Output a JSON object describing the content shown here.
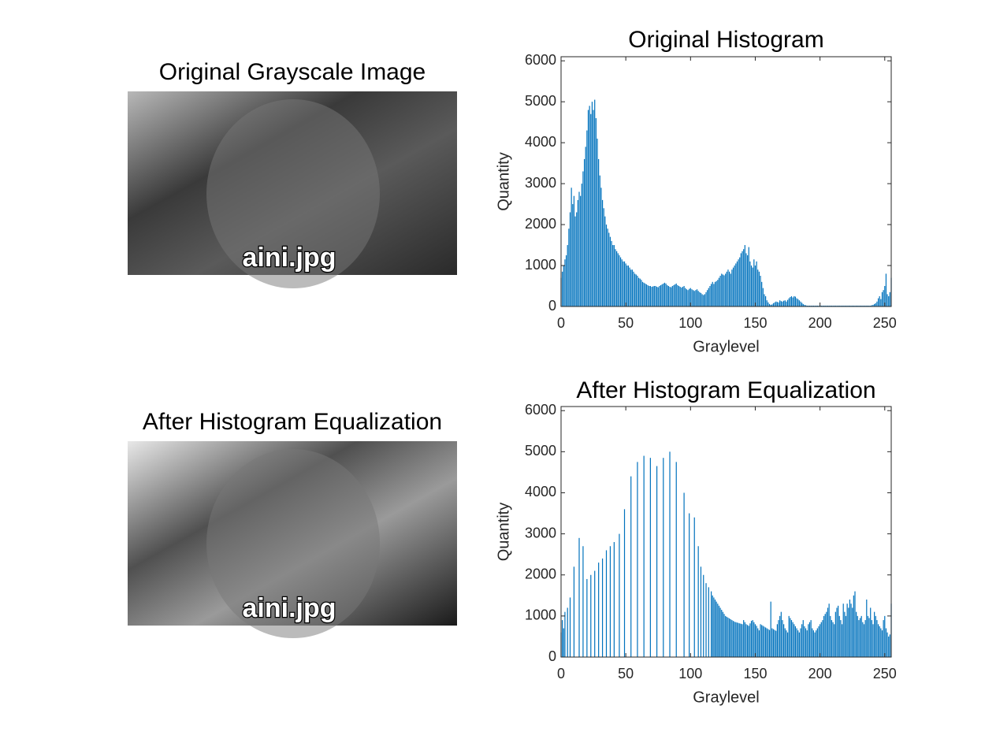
{
  "chart_data": [
    {
      "type": "image",
      "title": "Original Grayscale Image",
      "caption": "aini.jpg"
    },
    {
      "type": "histogram",
      "title": "Original Histogram",
      "xlabel": "Graylevel",
      "ylabel": "Quantity",
      "color": "#0072bd",
      "xlim": [
        0,
        255
      ],
      "ylim": [
        0,
        6100
      ],
      "xticks": [
        0,
        50,
        100,
        150,
        200,
        250
      ],
      "yticks": [
        0,
        1000,
        2000,
        3000,
        4000,
        5000,
        6000
      ],
      "x": [
        0,
        1,
        2,
        3,
        4,
        5,
        6,
        7,
        8,
        9,
        10,
        11,
        12,
        13,
        14,
        15,
        16,
        17,
        18,
        19,
        20,
        21,
        22,
        23,
        24,
        25,
        26,
        27,
        28,
        29,
        30,
        31,
        32,
        33,
        34,
        35,
        36,
        37,
        38,
        39,
        40,
        41,
        42,
        43,
        44,
        45,
        46,
        47,
        48,
        49,
        50,
        51,
        52,
        53,
        54,
        55,
        56,
        57,
        58,
        59,
        60,
        61,
        62,
        63,
        64,
        65,
        66,
        67,
        68,
        69,
        70,
        71,
        72,
        73,
        74,
        75,
        76,
        77,
        78,
        79,
        80,
        81,
        82,
        83,
        84,
        85,
        86,
        87,
        88,
        89,
        90,
        91,
        92,
        93,
        94,
        95,
        96,
        97,
        98,
        99,
        100,
        101,
        102,
        103,
        104,
        105,
        106,
        107,
        108,
        109,
        110,
        111,
        112,
        113,
        114,
        115,
        116,
        117,
        118,
        119,
        120,
        121,
        122,
        123,
        124,
        125,
        126,
        127,
        128,
        129,
        130,
        131,
        132,
        133,
        134,
        135,
        136,
        137,
        138,
        139,
        140,
        141,
        142,
        143,
        144,
        145,
        146,
        147,
        148,
        149,
        150,
        151,
        152,
        153,
        154,
        155,
        156,
        157,
        158,
        159,
        160,
        161,
        162,
        163,
        164,
        165,
        166,
        167,
        168,
        169,
        170,
        171,
        172,
        173,
        174,
        175,
        176,
        177,
        178,
        179,
        180,
        181,
        182,
        183,
        184,
        185,
        186,
        187,
        188,
        189,
        190,
        191,
        192,
        193,
        194,
        195,
        196,
        197,
        198,
        199,
        200,
        201,
        202,
        203,
        204,
        205,
        206,
        207,
        208,
        209,
        210,
        211,
        212,
        213,
        214,
        215,
        216,
        217,
        218,
        219,
        220,
        221,
        222,
        223,
        224,
        225,
        226,
        227,
        228,
        229,
        230,
        231,
        232,
        233,
        234,
        235,
        236,
        237,
        238,
        239,
        240,
        241,
        242,
        243,
        244,
        245,
        246,
        247,
        248,
        249,
        250,
        251,
        252,
        253,
        254,
        255
      ],
      "values": [
        700,
        850,
        1000,
        1150,
        1250,
        1500,
        1900,
        2300,
        2900,
        2500,
        2700,
        2200,
        2300,
        2600,
        2800,
        2700,
        3000,
        3300,
        3600,
        3900,
        4300,
        4800,
        4900,
        4700,
        5000,
        4800,
        5050,
        4600,
        4100,
        3600,
        3200,
        2900,
        2600,
        2400,
        2200,
        2000,
        1900,
        1800,
        1700,
        1600,
        1500,
        1500,
        1400,
        1350,
        1300,
        1250,
        1200,
        1150,
        1100,
        1100,
        1050,
        1000,
        1000,
        950,
        900,
        900,
        850,
        800,
        780,
        750,
        700,
        680,
        650,
        600,
        580,
        560,
        540,
        520,
        500,
        500,
        480,
        490,
        500,
        500,
        480,
        470,
        500,
        520,
        540,
        560,
        580,
        560,
        520,
        500,
        480,
        470,
        500,
        520,
        540,
        560,
        520,
        500,
        480,
        460,
        480,
        500,
        450,
        420,
        400,
        430,
        450,
        420,
        400,
        380,
        400,
        420,
        380,
        350,
        330,
        300,
        280,
        300,
        350,
        400,
        450,
        500,
        550,
        600,
        550,
        600,
        620,
        650,
        700,
        750,
        800,
        780,
        760,
        800,
        850,
        900,
        850,
        800,
        900,
        950,
        1000,
        1050,
        1100,
        1150,
        1200,
        1300,
        1350,
        1400,
        1500,
        1300,
        1250,
        1450,
        1100,
        1000,
        950,
        1150,
        1000,
        1100,
        900,
        850,
        750,
        600,
        450,
        300,
        250,
        150,
        100,
        60,
        40,
        50,
        80,
        100,
        120,
        110,
        100,
        150,
        130,
        120,
        140,
        150,
        120,
        160,
        200,
        230,
        250,
        220,
        250,
        240,
        200,
        180,
        150,
        120,
        90,
        60,
        40,
        30,
        20,
        20,
        20,
        20,
        20,
        20,
        20,
        20,
        20,
        20,
        20,
        20,
        20,
        20,
        20,
        20,
        20,
        20,
        20,
        20,
        20,
        20,
        20,
        20,
        20,
        20,
        20,
        20,
        20,
        20,
        20,
        20,
        20,
        20,
        20,
        20,
        20,
        20,
        20,
        20,
        20,
        20,
        20,
        20,
        20,
        20,
        20,
        20,
        20,
        20,
        30,
        40,
        60,
        80,
        120,
        200,
        250,
        180,
        350,
        400,
        500,
        800,
        300,
        250,
        350,
        700
      ]
    },
    {
      "type": "image",
      "title": "After Histogram Equalization",
      "caption": "aini.jpg"
    },
    {
      "type": "histogram",
      "title": "After Histogram Equalization",
      "xlabel": "Graylevel",
      "ylabel": "Quantity",
      "color": "#0072bd",
      "xlim": [
        0,
        255
      ],
      "ylim": [
        0,
        6100
      ],
      "xticks": [
        0,
        50,
        100,
        150,
        200,
        250
      ],
      "yticks": [
        0,
        1000,
        2000,
        3000,
        4000,
        5000,
        6000
      ],
      "x": [
        0,
        1,
        2,
        3,
        5,
        7,
        10,
        14,
        17,
        20,
        23,
        26,
        29,
        32,
        35,
        38,
        41,
        45,
        49,
        54,
        59,
        64,
        69,
        74,
        79,
        84,
        89,
        95,
        99,
        103,
        106,
        108,
        110,
        112,
        114,
        116,
        117,
        118,
        119,
        120,
        121,
        122,
        123,
        124,
        125,
        126,
        127,
        128,
        129,
        130,
        131,
        132,
        133,
        134,
        135,
        136,
        137,
        138,
        139,
        140,
        141,
        142,
        143,
        144,
        145,
        146,
        147,
        148,
        149,
        150,
        151,
        152,
        153,
        154,
        155,
        156,
        157,
        158,
        159,
        160,
        161,
        162,
        163,
        164,
        165,
        166,
        167,
        168,
        169,
        170,
        171,
        172,
        173,
        174,
        175,
        176,
        177,
        178,
        179,
        180,
        181,
        182,
        183,
        184,
        185,
        186,
        187,
        188,
        189,
        190,
        191,
        192,
        193,
        194,
        195,
        196,
        197,
        198,
        199,
        200,
        201,
        202,
        203,
        204,
        205,
        206,
        207,
        208,
        209,
        210,
        211,
        212,
        213,
        214,
        215,
        216,
        217,
        218,
        219,
        220,
        221,
        222,
        223,
        224,
        225,
        226,
        227,
        228,
        229,
        230,
        231,
        232,
        233,
        234,
        235,
        236,
        237,
        238,
        239,
        240,
        241,
        242,
        243,
        244,
        245,
        246,
        247,
        248,
        249,
        250,
        251,
        252,
        253,
        254,
        255
      ],
      "values": [
        600,
        900,
        700,
        1100,
        1200,
        1450,
        2200,
        2900,
        2700,
        1900,
        2000,
        2100,
        2300,
        2400,
        2600,
        2700,
        2800,
        3000,
        3600,
        4400,
        4750,
        4900,
        4850,
        4650,
        4850,
        5000,
        4750,
        4000,
        3500,
        3400,
        2700,
        2200,
        2000,
        1800,
        1700,
        1600,
        1500,
        1450,
        1400,
        1350,
        1300,
        1250,
        1200,
        1150,
        1100,
        1050,
        1000,
        980,
        960,
        940,
        920,
        900,
        880,
        860,
        850,
        840,
        830,
        820,
        810,
        800,
        900,
        850,
        800,
        780,
        760,
        820,
        880,
        900,
        850,
        800,
        760,
        700,
        650,
        800,
        780,
        760,
        740,
        720,
        700,
        680,
        660,
        1350,
        700,
        680,
        660,
        640,
        800,
        900,
        1000,
        1100,
        900,
        800,
        700,
        650,
        600,
        1000,
        950,
        900,
        850,
        800,
        750,
        700,
        650,
        600,
        700,
        800,
        900,
        750,
        700,
        650,
        800,
        850,
        900,
        700,
        650,
        600,
        650,
        700,
        750,
        800,
        850,
        900,
        1000,
        1050,
        1100,
        1200,
        1300,
        1000,
        900,
        850,
        800,
        1100,
        1200,
        1250,
        1000,
        900,
        800,
        1300,
        1100,
        1000,
        1300,
        1200,
        1400,
        1300,
        1200,
        1500,
        1600,
        1100,
        1000,
        900,
        950,
        1000,
        850,
        800,
        900,
        1400,
        1000,
        950,
        1200,
        900,
        800,
        1100,
        1000,
        900,
        800,
        750,
        700,
        650,
        900,
        1000,
        700,
        600,
        500,
        550,
        1300
      ]
    }
  ]
}
